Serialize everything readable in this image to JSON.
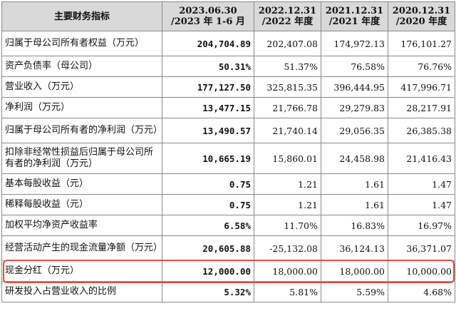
{
  "header": {
    "indicator": "主要财务指标",
    "col1_line1": "2023.06.30",
    "col1_line2": "/2023 年 1-6 月",
    "col2_line1": "2022.12.31",
    "col2_line2": "/2022 年度",
    "col3_line1": "2021.12.31",
    "col3_line2": "/2021 年度",
    "col4_line1": "2020.12.31",
    "col4_line2": "/2020 年度"
  },
  "rows": [
    {
      "label": "归属于母公司所有者权益（万元）",
      "v1": "204,704.89",
      "v2": "202,407.08",
      "v3": "174,972.13",
      "v4": "176,101.27"
    },
    {
      "label": "资产负债率（母公司）",
      "v1": "50.31%",
      "v2": "51.37%",
      "v3": "76.58%",
      "v4": "76.76%"
    },
    {
      "label": "营业收入（万元）",
      "v1": "177,127.50",
      "v2": "325,815.35",
      "v3": "396,444.95",
      "v4": "417,996.71"
    },
    {
      "label": "净利润（万元）",
      "v1": "13,477.15",
      "v2": "21,766.78",
      "v3": "29,279.83",
      "v4": "28,217.91"
    },
    {
      "label": "归属于母公司所有者的净利润（万元）",
      "v1": "13,490.57",
      "v2": "21,740.14",
      "v3": "29,056.35",
      "v4": "26,385.38"
    },
    {
      "label": "扣除非经常性损益后归属于母公司所有者的净利润（万元）",
      "v1": "10,665.19",
      "v2": "15,860.01",
      "v3": "24,458.98",
      "v4": "21,416.43"
    },
    {
      "label": "基本每股收益（元）",
      "v1": "0.75",
      "v2": "1.21",
      "v3": "1.61",
      "v4": "1.47"
    },
    {
      "label": "稀释每股收益（元）",
      "v1": "0.75",
      "v2": "1.21",
      "v3": "1.61",
      "v4": "1.47"
    },
    {
      "label": "加权平均净资产收益率",
      "v1": "6.58%",
      "v2": "11.70%",
      "v3": "16.83%",
      "v4": "16.97%"
    },
    {
      "label": "经营活动产生的现金流量净额（万元）",
      "v1": "20,605.88",
      "v2": "-25,132.08",
      "v3": "36,124.13",
      "v4": "36,371.07"
    },
    {
      "label": "现金分红（万元）",
      "v1": "12,000.00",
      "v2": "18,000.00",
      "v3": "18,000.00",
      "v4": "10,000.00"
    },
    {
      "label": "研发投入占营业收入的比例",
      "v1": "5.32%",
      "v2": "5.81%",
      "v3": "5.59%",
      "v4": "4.68%"
    }
  ],
  "highlight_color": "#e0503a"
}
